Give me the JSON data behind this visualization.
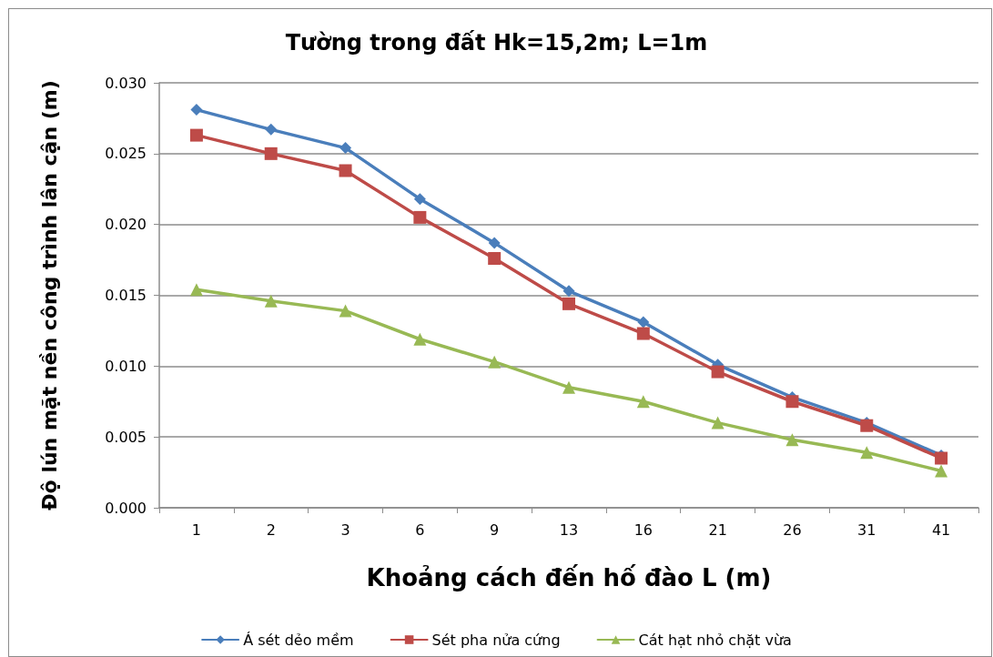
{
  "chart_data": {
    "type": "line",
    "title": "Tường trong đất Hk=15,2m; L=1m",
    "xlabel": "Khoảng cách đến hố đào L (m)",
    "ylabel": "Độ lún mặt nền công trình lân cận (m)",
    "categories": [
      "1",
      "2",
      "3",
      "6",
      "9",
      "13",
      "16",
      "21",
      "26",
      "31",
      "41"
    ],
    "series": [
      {
        "name": "Á sét dẻo mềm",
        "color": "#4a7ebb",
        "marker": "diamond",
        "values": [
          0.0281,
          0.0267,
          0.0254,
          0.0218,
          0.0187,
          0.0153,
          0.0131,
          0.0101,
          0.0078,
          0.006,
          0.0037
        ]
      },
      {
        "name": "Sét pha nửa cứng",
        "color": "#be4b48",
        "marker": "square",
        "values": [
          0.0263,
          0.025,
          0.0238,
          0.0205,
          0.0176,
          0.0144,
          0.0123,
          0.0096,
          0.0075,
          0.0058,
          0.0035
        ]
      },
      {
        "name": "Cát hạt nhỏ chặt vừa",
        "color": "#98b954",
        "marker": "triangle",
        "values": [
          0.0154,
          0.0146,
          0.0139,
          0.0119,
          0.0103,
          0.0085,
          0.0075,
          0.006,
          0.0048,
          0.0039,
          0.0026
        ]
      }
    ],
    "ylim": [
      0,
      0.03
    ],
    "yticks": [
      {
        "value": 0,
        "label": "0.000"
      },
      {
        "value": 0.005,
        "label": "0.005"
      },
      {
        "value": 0.01,
        "label": "0.010"
      },
      {
        "value": 0.015,
        "label": "0.015"
      },
      {
        "value": 0.02,
        "label": "0.020"
      },
      {
        "value": 0.025,
        "label": "0.025"
      },
      {
        "value": 0.03,
        "label": "0.030"
      }
    ],
    "grid": "y",
    "legend": "bottom"
  }
}
